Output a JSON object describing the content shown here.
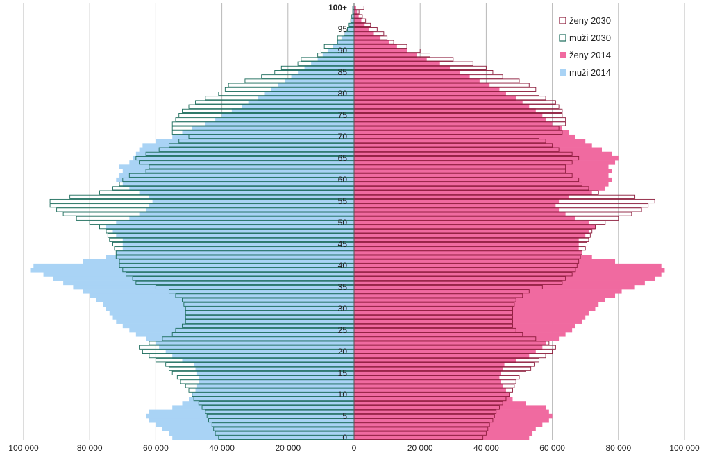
{
  "chart_data": {
    "type": "bar",
    "orientation": "horizontal-population-pyramid",
    "title": "",
    "xlabel": "",
    "ylabel": "",
    "xlim": [
      -100000,
      100000
    ],
    "x_tick_values": [
      -100000,
      -80000,
      -60000,
      -40000,
      -20000,
      0,
      20000,
      40000,
      60000,
      80000,
      100000
    ],
    "x_tick_labels": [
      "100 000",
      "80 000",
      "60 000",
      "40 000",
      "20 000",
      "0",
      "20 000",
      "40 000",
      "60 000",
      "80 000",
      "100 000"
    ],
    "age_tick_values": [
      0,
      5,
      10,
      15,
      20,
      25,
      30,
      35,
      40,
      45,
      50,
      55,
      60,
      65,
      70,
      75,
      80,
      85,
      90,
      95,
      100
    ],
    "age_tick_labels": [
      "0",
      "5",
      "10",
      "15",
      "20",
      "25",
      "30",
      "35",
      "40",
      "45",
      "50",
      "55",
      "60",
      "65",
      "70",
      "75",
      "80",
      "85",
      "90",
      "95",
      "100+"
    ],
    "grid": "vertical",
    "legend_position": "top-right",
    "ages": [
      0,
      1,
      2,
      3,
      4,
      5,
      6,
      7,
      8,
      9,
      10,
      11,
      12,
      13,
      14,
      15,
      16,
      17,
      18,
      19,
      20,
      21,
      22,
      23,
      24,
      25,
      26,
      27,
      28,
      29,
      30,
      31,
      32,
      33,
      34,
      35,
      36,
      37,
      38,
      39,
      40,
      41,
      42,
      43,
      44,
      45,
      46,
      47,
      48,
      49,
      50,
      51,
      52,
      53,
      54,
      55,
      56,
      57,
      58,
      59,
      60,
      61,
      62,
      63,
      64,
      65,
      66,
      67,
      68,
      69,
      70,
      71,
      72,
      73,
      74,
      75,
      76,
      77,
      78,
      79,
      80,
      81,
      82,
      83,
      84,
      85,
      86,
      87,
      88,
      89,
      90,
      91,
      92,
      93,
      94,
      95,
      96,
      97,
      98,
      99,
      100
    ],
    "series": [
      {
        "name": "muži 2014",
        "key": "m2014",
        "color": "#a9d3f5",
        "values": [
          55000,
          56000,
          58000,
          60000,
          62000,
          63000,
          62000,
          55000,
          52000,
          50000,
          49000,
          48000,
          47500,
          47000,
          47000,
          47500,
          48000,
          48500,
          52000,
          55000,
          57000,
          59000,
          60000,
          63000,
          66000,
          68000,
          70000,
          72000,
          73000,
          74000,
          75000,
          76000,
          78000,
          80000,
          82000,
          85000,
          88000,
          91000,
          94000,
          98000,
          97000,
          82000,
          75000,
          72000,
          70000,
          70000,
          70000,
          72000,
          73000,
          75000,
          72000,
          68000,
          65000,
          63000,
          62000,
          61000,
          62000,
          65000,
          68000,
          70000,
          72000,
          71000,
          70000,
          71000,
          68000,
          67000,
          66000,
          65000,
          64000,
          60000,
          55000,
          52000,
          49000,
          45000,
          42000,
          40000,
          37000,
          34000,
          32000,
          29000,
          27000,
          25000,
          23000,
          21000,
          19000,
          17000,
          15000,
          13000,
          11000,
          9500,
          8000,
          6500,
          5000,
          3800,
          2800,
          2000,
          1400,
          900,
          600,
          400,
          400
        ]
      },
      {
        "name": "ženy 2014",
        "key": "f2014",
        "color": "#f06aa0",
        "values": [
          53000,
          54000,
          55000,
          57000,
          59000,
          60000,
          59000,
          58000,
          52000,
          48000,
          47000,
          46000,
          45000,
          44500,
          44000,
          44500,
          45000,
          45500,
          49000,
          53000,
          55000,
          57000,
          58000,
          62000,
          64000,
          66000,
          67000,
          69000,
          70000,
          71000,
          73000,
          74000,
          76000,
          79000,
          81000,
          85000,
          88000,
          91000,
          93000,
          94000,
          93000,
          79000,
          72000,
          69000,
          68000,
          68000,
          68000,
          70000,
          71000,
          73000,
          71000,
          67000,
          64000,
          62000,
          61000,
          62000,
          65000,
          72000,
          76000,
          77000,
          78000,
          77000,
          78000,
          77000,
          79000,
          80000,
          78000,
          75000,
          72000,
          70000,
          67000,
          65000,
          63000,
          60000,
          58000,
          57000,
          55000,
          53000,
          51000,
          49000,
          46000,
          44000,
          41000,
          38000,
          35000,
          32000,
          29000,
          26000,
          22000,
          19000,
          16000,
          13000,
          10500,
          8000,
          6000,
          4500,
          3200,
          2200,
          1400,
          900,
          600
        ]
      },
      {
        "name": "muži 2030",
        "key": "m2030",
        "color": "#1a6b5a",
        "values": [
          41000,
          42000,
          42500,
          43000,
          44000,
          44500,
          45000,
          46000,
          47000,
          48500,
          49000,
          50000,
          51000,
          52500,
          53500,
          55000,
          56000,
          57000,
          60000,
          62000,
          64000,
          65000,
          62000,
          58000,
          55000,
          54000,
          52000,
          51000,
          51000,
          51000,
          51000,
          51500,
          52000,
          54000,
          56000,
          60000,
          66000,
          67000,
          69000,
          70000,
          71000,
          71000,
          72000,
          72000,
          72500,
          73000,
          74000,
          74500,
          75000,
          77000,
          80000,
          84000,
          88000,
          90000,
          92000,
          92000,
          86000,
          77000,
          73000,
          71000,
          70000,
          68000,
          63000,
          62000,
          65000,
          66000,
          63000,
          59000,
          56000,
          53000,
          50000,
          55000,
          55000,
          55000,
          54000,
          53000,
          52000,
          50000,
          48000,
          45000,
          41000,
          39000,
          38000,
          33000,
          28000,
          24000,
          22000,
          17000,
          16000,
          11000,
          10000,
          9000,
          5000,
          5000,
          3000,
          2000,
          1500,
          1000,
          700,
          400,
          400
        ]
      },
      {
        "name": "ženy 2030",
        "key": "f2030",
        "color": "#8b1a3a",
        "values": [
          39000,
          40000,
          40500,
          41000,
          42000,
          42500,
          43000,
          44000,
          45000,
          46000,
          47000,
          48000,
          48500,
          49000,
          50000,
          52000,
          53500,
          54500,
          56000,
          58000,
          60000,
          61000,
          59000,
          55000,
          51000,
          49000,
          48000,
          48000,
          48000,
          48000,
          48000,
          48500,
          49000,
          51000,
          53000,
          57000,
          63000,
          64000,
          66000,
          67000,
          67500,
          68000,
          68500,
          69000,
          70000,
          70500,
          71000,
          71500,
          72000,
          73000,
          76000,
          80000,
          84000,
          87000,
          89000,
          91000,
          85000,
          74000,
          71000,
          69000,
          68000,
          66000,
          64000,
          64000,
          66000,
          68000,
          66000,
          62000,
          60000,
          58000,
          56000,
          63000,
          62000,
          64000,
          64000,
          63000,
          63000,
          62000,
          61000,
          58000,
          56000,
          55000,
          53000,
          50000,
          45000,
          42000,
          40000,
          36000,
          30000,
          23000,
          20000,
          16000,
          12000,
          10000,
          9000,
          7000,
          5000,
          3500,
          2500,
          1500,
          3000
        ]
      }
    ],
    "legend_entries": [
      {
        "label": "ženy 2030",
        "key": "f2030"
      },
      {
        "label": "muži 2030",
        "key": "m2030"
      },
      {
        "label": "ženy 2014",
        "key": "f2014"
      },
      {
        "label": "muži 2014",
        "key": "m2014"
      }
    ]
  }
}
